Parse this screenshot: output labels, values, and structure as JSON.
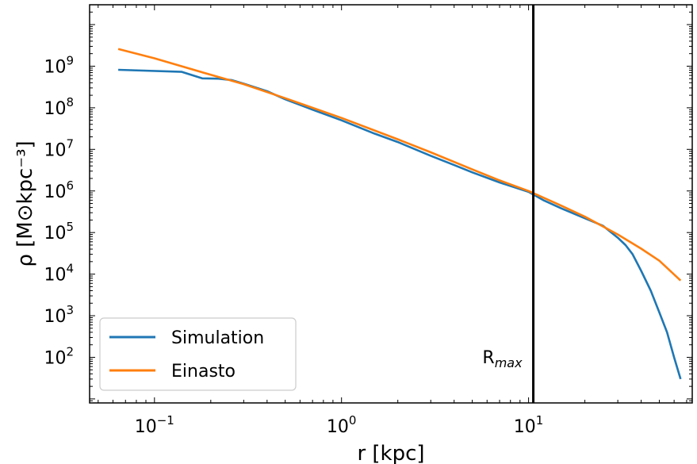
{
  "chart_data": {
    "type": "line",
    "xlabel": "r [kpc]",
    "ylabel": "ρ [M⊙kpc⁻³]",
    "xscale": "log",
    "yscale": "log",
    "xlim": [
      0.045,
      75
    ],
    "ylim": [
      8,
      30000000000
    ],
    "x_ticks": [
      {
        "value": 0.1,
        "base": "10",
        "exp": "−1"
      },
      {
        "value": 1,
        "base": "10",
        "exp": "0"
      },
      {
        "value": 10,
        "base": "10",
        "exp": "1"
      }
    ],
    "y_ticks": [
      {
        "value": 100,
        "base": "10",
        "exp": "2"
      },
      {
        "value": 1000,
        "base": "10",
        "exp": "3"
      },
      {
        "value": 10000,
        "base": "10",
        "exp": "4"
      },
      {
        "value": 100000,
        "base": "10",
        "exp": "5"
      },
      {
        "value": 1000000,
        "base": "10",
        "exp": "6"
      },
      {
        "value": 10000000,
        "base": "10",
        "exp": "7"
      },
      {
        "value": 100000000,
        "base": "10",
        "exp": "8"
      },
      {
        "value": 1000000000,
        "base": "10",
        "exp": "9"
      }
    ],
    "legend_position": "lower-left",
    "series": [
      {
        "name": "Simulation",
        "color": "#1f77b4",
        "x": [
          0.064,
          0.14,
          0.18,
          0.22,
          0.26,
          0.3,
          0.4,
          0.5,
          0.7,
          1.0,
          1.5,
          2.0,
          3.0,
          4.0,
          5.0,
          7.0,
          10.0,
          12.0,
          15.0,
          20.0,
          25.0,
          30.0,
          33.0,
          36.0,
          40.0,
          45.0,
          50.0,
          55.0,
          60.0,
          65.0
        ],
        "y": [
          820000000,
          730000000,
          510000000,
          500000000,
          460000000,
          380000000,
          250000000,
          160000000,
          90000000,
          50000000,
          24000000,
          15000000,
          7000000,
          4200000,
          2800000,
          1600000,
          950000,
          600000,
          380000,
          220000,
          145000,
          75000,
          50000,
          30000,
          12000,
          4000,
          1200,
          400,
          100,
          30
        ]
      },
      {
        "name": "Einasto",
        "color": "#ff7f0e",
        "x": [
          0.064,
          0.1,
          0.2,
          0.3,
          0.5,
          1.0,
          2.0,
          3.0,
          5.0,
          7.0,
          10.0,
          15.0,
          20.0,
          30.0,
          40.0,
          50.0,
          65.0
        ],
        "y": [
          2600000000,
          1550000000,
          620000000,
          370000000,
          170000000,
          57000000,
          17500000,
          8500000,
          3300000,
          1800000,
          1000000,
          440000,
          240000,
          90000,
          41000,
          21000,
          7000
        ]
      }
    ],
    "vline": {
      "x": 10.6,
      "label_base": "R",
      "label_sub": "max",
      "color": "#000000"
    }
  }
}
